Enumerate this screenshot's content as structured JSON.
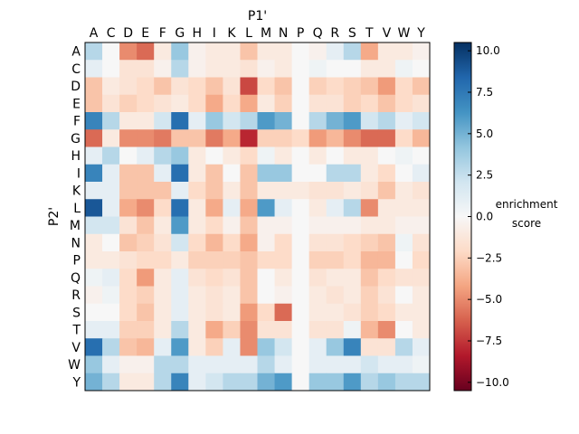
{
  "chart_data": {
    "type": "heatmap",
    "title": "",
    "xlabel": "P1'",
    "ylabel": "P2'",
    "x_categories": [
      "A",
      "C",
      "D",
      "E",
      "F",
      "G",
      "H",
      "I",
      "K",
      "L",
      "M",
      "N",
      "P",
      "Q",
      "R",
      "S",
      "T",
      "V",
      "W",
      "Y"
    ],
    "y_categories": [
      "A",
      "C",
      "D",
      "E",
      "F",
      "G",
      "H",
      "I",
      "K",
      "L",
      "M",
      "N",
      "P",
      "Q",
      "R",
      "S",
      "T",
      "V",
      "W",
      "Y"
    ],
    "values": [
      [
        3,
        0,
        -5,
        -6,
        -1,
        4,
        -0.5,
        -1,
        -1,
        -3,
        -1,
        -1,
        0,
        -0.5,
        1,
        3,
        -4,
        -1,
        -1,
        -0.5
      ],
      [
        1,
        0,
        -1.5,
        -1.5,
        -0.5,
        3,
        -0.5,
        -1,
        -1,
        -1.5,
        -0.5,
        -1,
        0,
        0.5,
        0,
        0,
        -1,
        -1,
        0.5,
        0
      ],
      [
        -3,
        -1,
        -1.5,
        -2,
        -3,
        -1.5,
        -2,
        -3,
        -1.5,
        -7,
        -2,
        -3,
        0,
        -2.5,
        -2,
        -2.5,
        -3,
        -4.5,
        -2,
        -3
      ],
      [
        -3,
        -1.5,
        -2.5,
        -2,
        -1.5,
        -1,
        -2,
        -4,
        -2,
        -4,
        -1,
        -2.5,
        0,
        -1.5,
        -1.5,
        -2.5,
        -2,
        -3,
        -2,
        -1.5
      ],
      [
        7,
        3,
        -1,
        -1,
        2,
        8,
        1,
        4,
        2,
        3,
        6,
        5,
        0,
        3,
        5,
        6,
        2,
        3,
        1,
        2
      ],
      [
        -6,
        -1,
        -5,
        -5,
        -5.5,
        -3,
        -3,
        -5.5,
        -4,
        -8,
        -2.5,
        -2.5,
        -2,
        -4.5,
        -3.5,
        -5,
        -6,
        -6,
        -2,
        -3.5
      ],
      [
        1,
        3,
        0,
        1,
        3,
        4,
        -1,
        0,
        -1,
        -2,
        0.5,
        -1,
        0,
        -1,
        0,
        -1,
        -1,
        0,
        0.5,
        0
      ],
      [
        7,
        1,
        -3,
        -3,
        1,
        8,
        -1,
        -3,
        0,
        -3,
        4,
        4,
        0,
        0,
        3,
        3,
        -1,
        -2,
        0,
        1
      ],
      [
        1,
        1,
        -3,
        -3,
        -3,
        1,
        -2,
        -3,
        -1,
        -3,
        -1,
        -1,
        -1,
        -1.5,
        -1.5,
        -1,
        -1.5,
        -3,
        -1,
        -1.5
      ],
      [
        9,
        1,
        -4,
        -5,
        -2,
        8,
        -1,
        -4,
        1,
        -4,
        6,
        1,
        0,
        -1,
        1,
        3,
        -5,
        -1,
        -1,
        -1
      ],
      [
        2,
        2,
        -1.5,
        -3,
        -1,
        6,
        -1,
        -2,
        -0.5,
        -3,
        -0.5,
        -0.5,
        0,
        -0.5,
        -0.5,
        -0.5,
        -1,
        -1,
        -0.5,
        -0.5
      ],
      [
        -1,
        0,
        -3,
        -2.5,
        -1.5,
        2,
        -2,
        -3.5,
        -2,
        -4,
        -0.5,
        -2,
        0,
        -1.5,
        -1.5,
        -2,
        -2.5,
        -3,
        0.5,
        -1.5
      ],
      [
        -1,
        -1,
        -1.5,
        -2,
        -2,
        -1,
        -2.5,
        -2.5,
        -2.5,
        -3,
        -2,
        -2,
        0,
        -2.5,
        -2.5,
        -2,
        -3.5,
        -3.5,
        0,
        -2
      ],
      [
        0.5,
        1,
        -2,
        -4.5,
        -1,
        1,
        -1.5,
        -2,
        -1.5,
        -3,
        0,
        -1,
        0,
        -1.5,
        -1,
        -1,
        -3,
        -2,
        -1.5,
        -1.5
      ],
      [
        -0.5,
        0.5,
        -2,
        -2.5,
        -1,
        1,
        -1,
        -1.5,
        -1,
        -3,
        0,
        -0.5,
        0,
        -1,
        -1.5,
        -1,
        -2.5,
        -1.5,
        0,
        -1
      ],
      [
        0,
        0,
        -2,
        -3,
        -1,
        1,
        -1,
        -1.5,
        -1,
        -4.5,
        -2,
        -6,
        0,
        -1,
        -1,
        -1.5,
        -2.5,
        -2,
        -1,
        -1
      ],
      [
        1,
        1,
        -2.5,
        -2.5,
        -1,
        3,
        -1,
        -4,
        -2.5,
        -5,
        -1.5,
        -1.5,
        0,
        -1.5,
        -1.5,
        0.5,
        -3.5,
        -5,
        0,
        -1
      ],
      [
        8,
        3,
        -3,
        -3.5,
        1,
        6,
        -1,
        -2.5,
        1,
        -5,
        4,
        2,
        0,
        1,
        4,
        7,
        -1.5,
        -1.5,
        3,
        1
      ],
      [
        4,
        1,
        -0.5,
        -0.5,
        3,
        3,
        1,
        1,
        1,
        1,
        3,
        1,
        0,
        1,
        1,
        1,
        2,
        1,
        1,
        0.5
      ],
      [
        5,
        3,
        -1,
        -1,
        3,
        7,
        1,
        2,
        3,
        3,
        5,
        6,
        0,
        4,
        4,
        6,
        3,
        4,
        3,
        3
      ]
    ],
    "vmin": -10.5,
    "vmax": 10.5,
    "colormap": "RdBu",
    "colorbar": {
      "label_line1": "enrichment",
      "label_line2": "score",
      "ticks": [
        10.0,
        7.5,
        5.0,
        2.5,
        0.0,
        -2.5,
        -5.0,
        -7.5,
        -10.0
      ],
      "tick_labels": [
        "10.0",
        "7.5",
        "5.0",
        "2.5",
        "0.0",
        "−2.5",
        "−5.0",
        "−7.5",
        "−10.0"
      ]
    },
    "x_axis_position": "top",
    "grid": false
  }
}
